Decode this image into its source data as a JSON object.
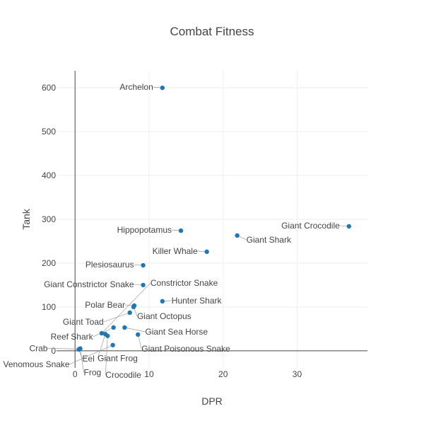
{
  "chart_data": {
    "type": "scatter",
    "title": "Combat Fitness",
    "xlabel": "DPR",
    "ylabel": "Tank",
    "xlim": [
      -2.5,
      39.5
    ],
    "ylim": [
      -39,
      639
    ],
    "xticks": [
      0,
      10,
      20,
      30
    ],
    "yticks": [
      0,
      100,
      200,
      300,
      400,
      500,
      600
    ],
    "grid": true,
    "marker_color": "#1f77b4",
    "points": [
      {
        "label": "Archelon",
        "x": 11.8,
        "y": 600
      },
      {
        "label": "Giant Crocodile",
        "x": 37,
        "y": 284
      },
      {
        "label": "Giant Shark",
        "x": 21.9,
        "y": 263
      },
      {
        "label": "Hippopotamus",
        "x": 14.3,
        "y": 274
      },
      {
        "label": "Killer Whale",
        "x": 17.8,
        "y": 226
      },
      {
        "label": "Plesiosaurus",
        "x": 9.2,
        "y": 195
      },
      {
        "label": "Giant Constrictor Snake",
        "x": 9.2,
        "y": 150
      },
      {
        "label": "Hunter Shark",
        "x": 11.8,
        "y": 113
      },
      {
        "label": "Polar Bear",
        "x": 8,
        "y": 103
      },
      {
        "label": "Giant Octopus",
        "x": 7.9,
        "y": 100
      },
      {
        "label": "Giant Toad",
        "x": 7.4,
        "y": 87
      },
      {
        "label": "Giant Sea Horse",
        "x": 6.7,
        "y": 53
      },
      {
        "label": "Reef Shark",
        "x": 5.2,
        "y": 53
      },
      {
        "label": "Giant Poisonous Snake",
        "x": 8.5,
        "y": 37
      },
      {
        "label": "Constrictor Snake",
        "x": 3.6,
        "y": 40
      },
      {
        "label": "Giant Frog",
        "x": 4.1,
        "y": 38
      },
      {
        "label": "Crocodile",
        "x": 4.4,
        "y": 34
      },
      {
        "label": "Venomous Snake",
        "x": 5.1,
        "y": 13
      },
      {
        "label": "Frog",
        "x": 0.7,
        "y": 5
      },
      {
        "label": "Crab",
        "x": 0.6,
        "y": 4
      },
      {
        "label": "Eel",
        "x": 0.5,
        "y": 3
      }
    ]
  }
}
